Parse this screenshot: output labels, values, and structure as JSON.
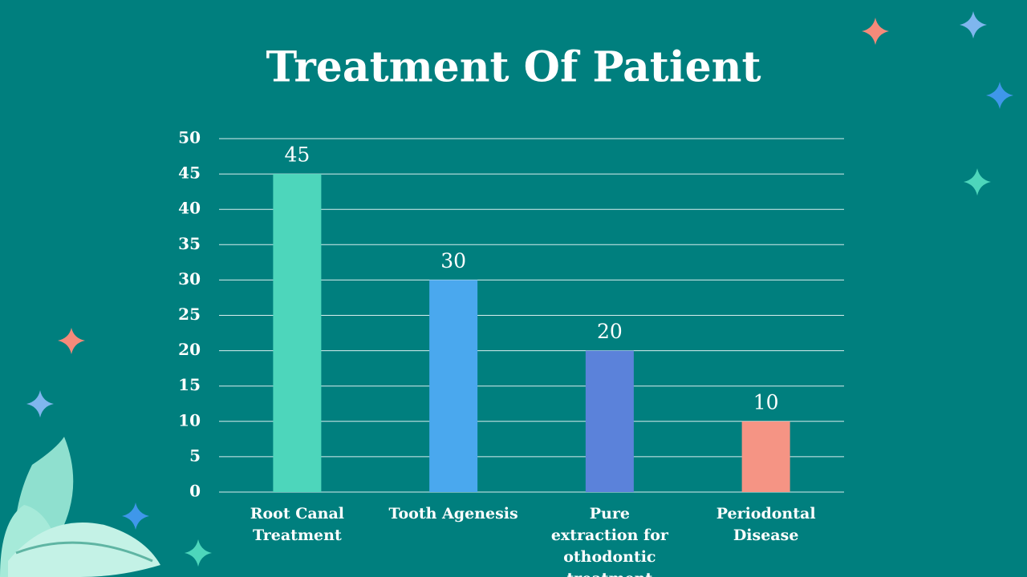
{
  "chart_data": {
    "type": "bar",
    "title": "Treatment Of Patient",
    "categories": [
      "Root Canal Treatment",
      "Tooth Agenesis",
      "Pure  extraction for othodontic treatment",
      "Periodontal Disease"
    ],
    "values": [
      45,
      30,
      20,
      10
    ],
    "colors": [
      "#4dd6bb",
      "#4aa8ee",
      "#5b82da",
      "#f59484"
    ],
    "ylim": [
      0,
      50
    ],
    "yticks": [
      0,
      5,
      10,
      15,
      20,
      25,
      30,
      35,
      40,
      45,
      50
    ],
    "grid": true
  }
}
